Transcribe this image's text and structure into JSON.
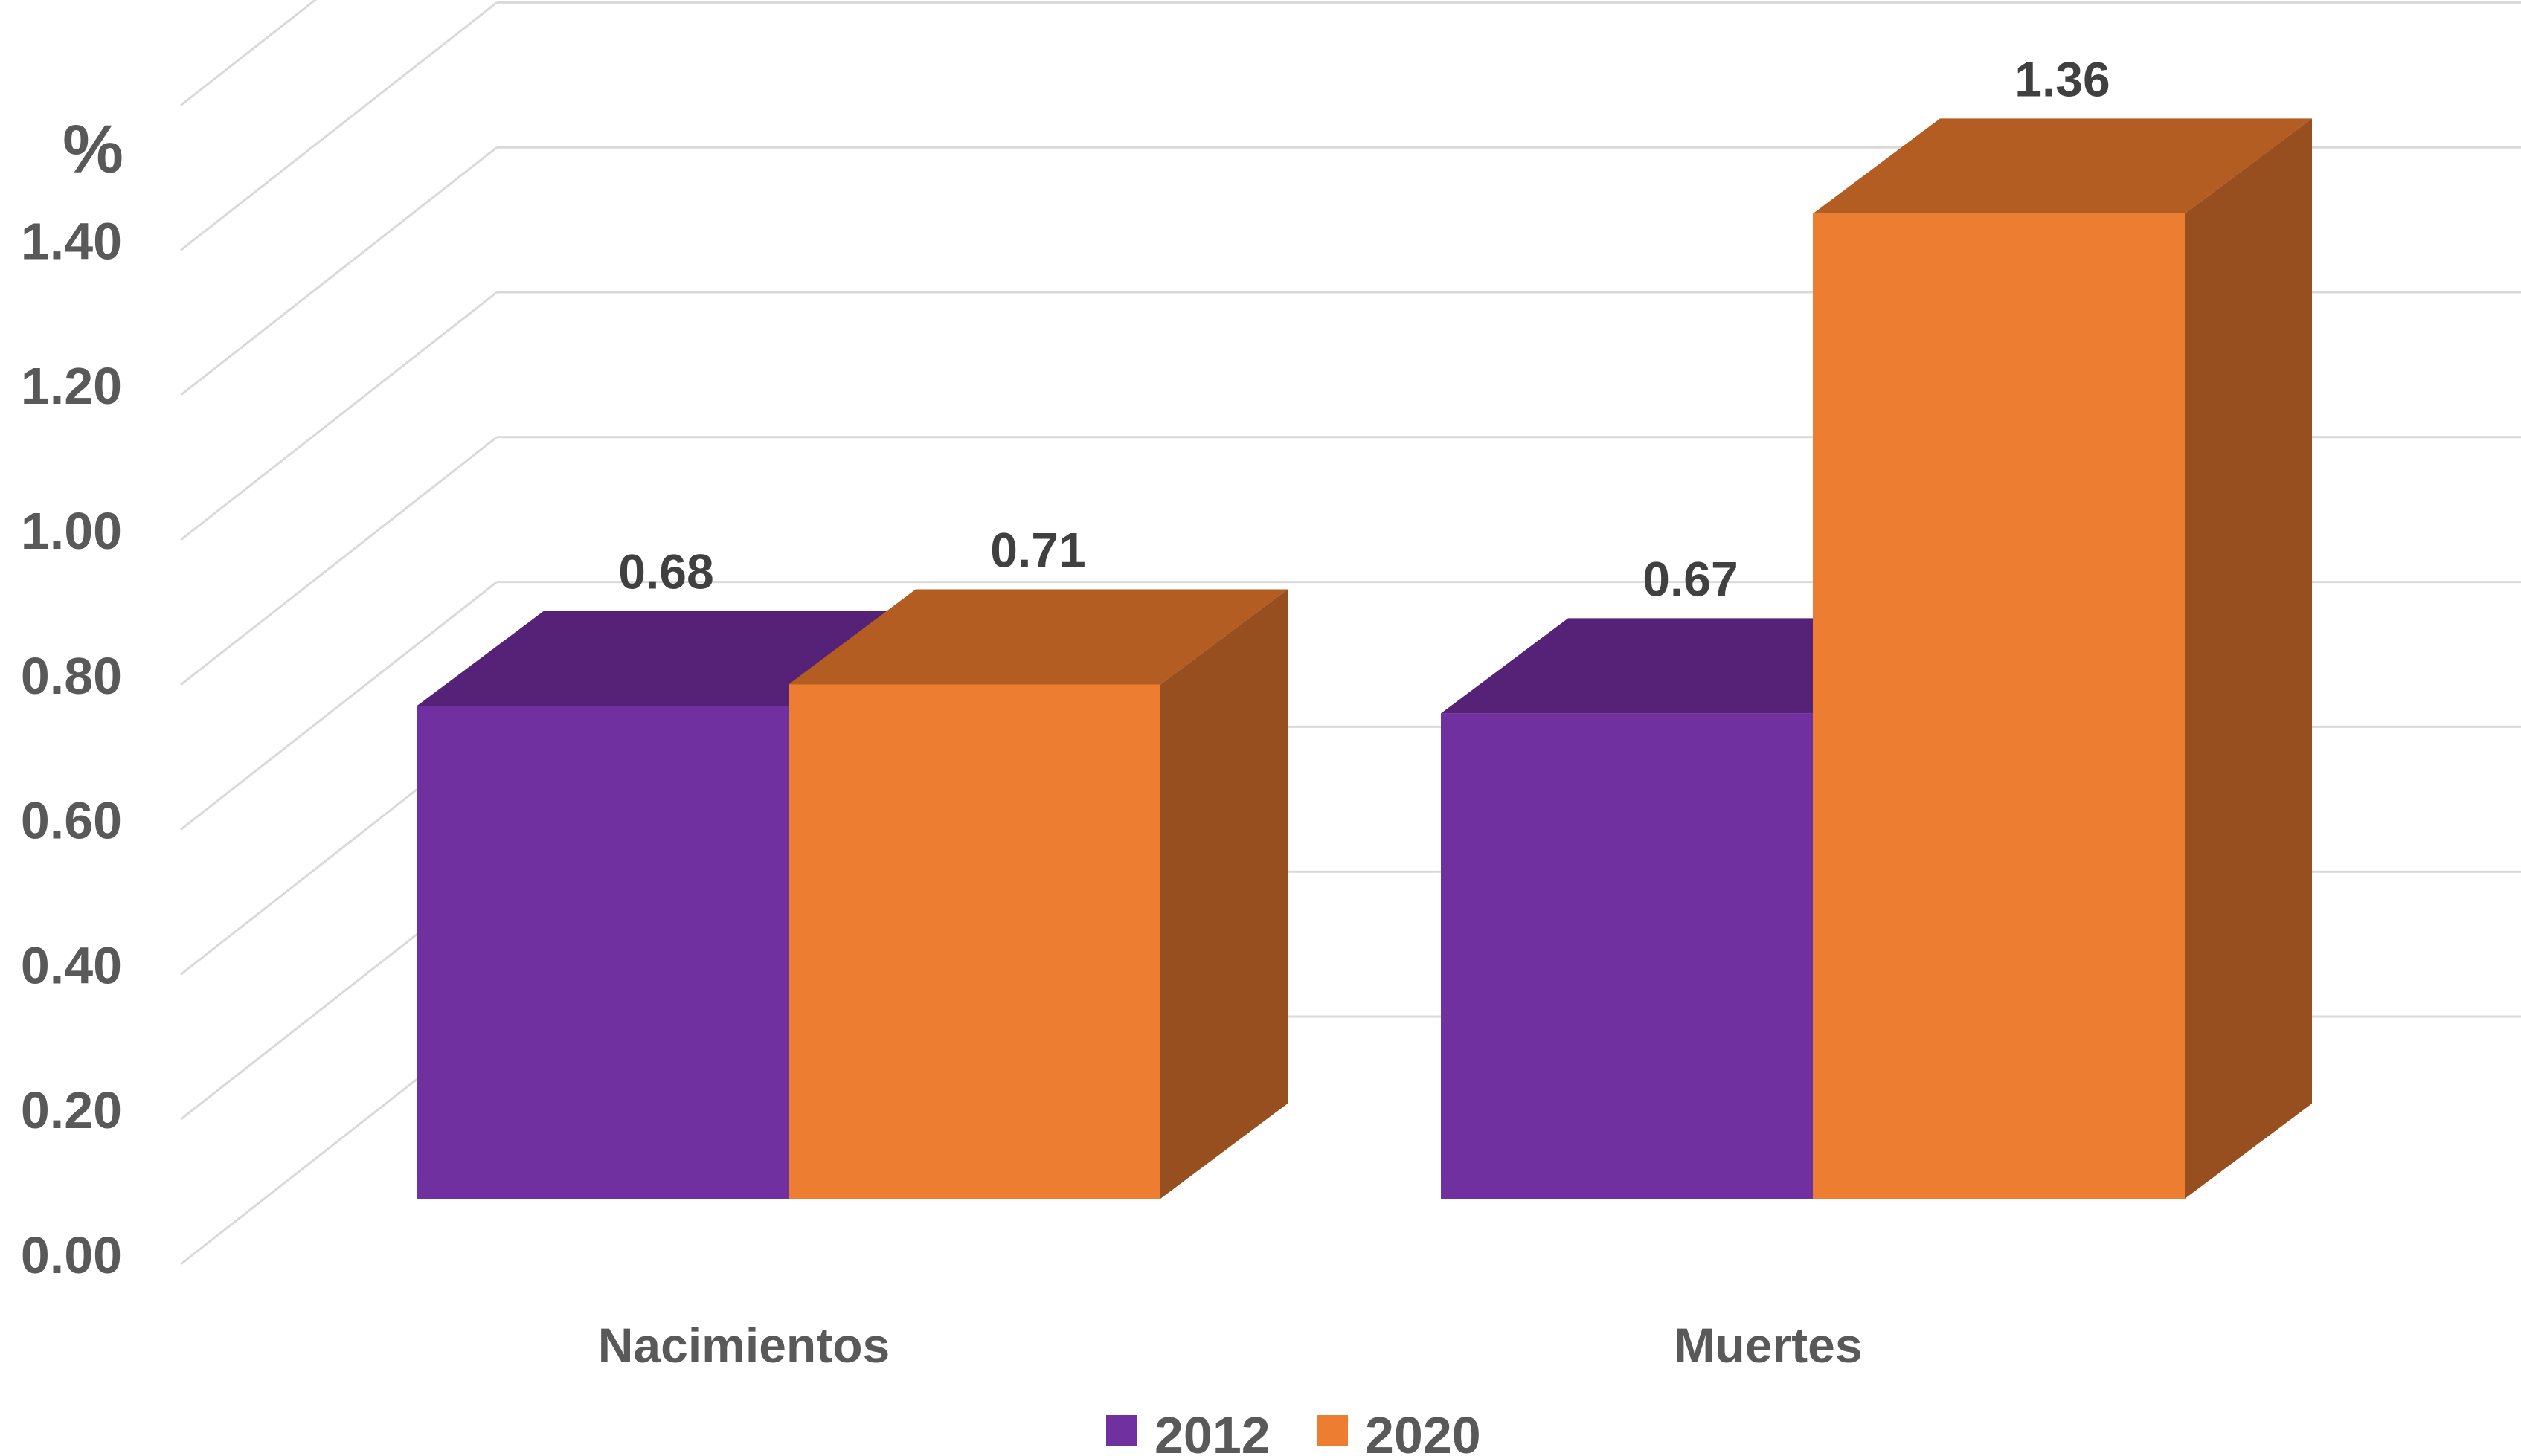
{
  "chart_data": {
    "type": "bar",
    "style": "3d-clustered-column",
    "categories": [
      "Nacimientos",
      "Muertes"
    ],
    "series": [
      {
        "name": "2012",
        "values": [
          0.68,
          0.67
        ],
        "color": "#7030A0",
        "top_color": "#552277",
        "side_color": "#45195F"
      },
      {
        "name": "2020",
        "values": [
          0.71,
          1.36
        ],
        "color": "#ED7D31",
        "top_color": "#B45D23",
        "side_color": "#974F1F"
      }
    ],
    "data_labels": [
      "0.68",
      "0.67",
      "0.71",
      "1.36"
    ],
    "y_unit": "%",
    "y_ticks": [
      "0.00",
      "0.20",
      "0.40",
      "0.60",
      "0.80",
      "1.00",
      "1.20",
      "1.40"
    ],
    "ylim": [
      0,
      1.6
    ],
    "grid": true,
    "legend_position": "bottom",
    "gridline_color": "#D9D9D9"
  }
}
